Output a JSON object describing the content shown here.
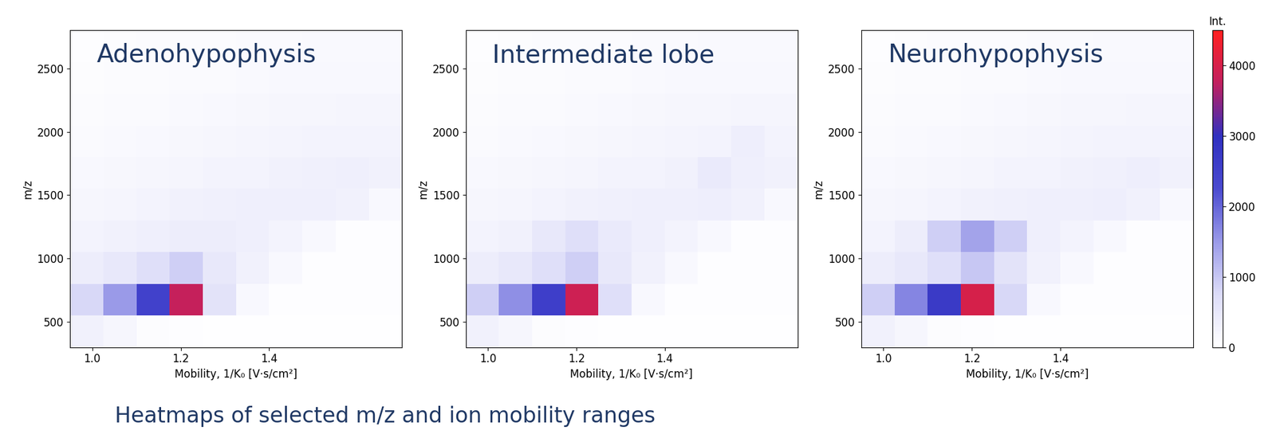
{
  "caption": "Heatmaps of selected m/z and ion mobility ranges",
  "colorbar": {
    "label": "Int.",
    "range": [
      0,
      4500
    ],
    "ticks": [
      0,
      1000,
      2000,
      3000,
      4000
    ]
  },
  "chart_data": [
    {
      "type": "heatmap",
      "title": "Adenohypophysis",
      "x_label": "Mobility, 1/K₀ [V·s/cm²]",
      "y_label": "m/z",
      "xlim": [
        0.95,
        1.7
      ],
      "ylim": [
        300,
        2800
      ],
      "xticks": [
        1.0,
        1.2,
        1.4
      ],
      "yticks": [
        500,
        1000,
        1500,
        2000,
        2500
      ],
      "grid": false,
      "x_bins": [
        0.95,
        1.025,
        1.1,
        1.175,
        1.25,
        1.325,
        1.4,
        1.475,
        1.55,
        1.625,
        1.7
      ],
      "y_bins": [
        300,
        550,
        800,
        1050,
        1300,
        1550,
        1800,
        2050,
        2300,
        2550,
        2800
      ],
      "cells": [
        [
          300,
          200,
          80,
          40,
          30,
          30,
          30,
          30,
          30,
          30
        ],
        [
          800,
          1500,
          2500,
          3800,
          600,
          150,
          60,
          40,
          40,
          40
        ],
        [
          400,
          500,
          700,
          900,
          500,
          300,
          150,
          60,
          40,
          40
        ],
        [
          250,
          300,
          350,
          400,
          400,
          350,
          250,
          150,
          60,
          50
        ],
        [
          200,
          220,
          250,
          300,
          320,
          350,
          350,
          350,
          300,
          150
        ],
        [
          150,
          180,
          200,
          220,
          250,
          270,
          300,
          320,
          350,
          300
        ],
        [
          120,
          140,
          160,
          180,
          200,
          220,
          240,
          260,
          280,
          260
        ],
        [
          100,
          110,
          120,
          140,
          160,
          180,
          200,
          210,
          220,
          220
        ],
        [
          80,
          90,
          100,
          110,
          120,
          140,
          150,
          160,
          170,
          170
        ],
        [
          70,
          80,
          90,
          100,
          100,
          110,
          120,
          130,
          140,
          140
        ]
      ]
    },
    {
      "type": "heatmap",
      "title": "Intermediate lobe",
      "x_label": "Mobility, 1/K₀ [V·s/cm²]",
      "y_label": "m/z",
      "xlim": [
        0.95,
        1.7
      ],
      "ylim": [
        300,
        2800
      ],
      "xticks": [
        1.0,
        1.2,
        1.4
      ],
      "yticks": [
        500,
        1000,
        1500,
        2000,
        2500
      ],
      "grid": false,
      "x_bins": [
        0.95,
        1.025,
        1.1,
        1.175,
        1.25,
        1.325,
        1.4,
        1.475,
        1.55,
        1.625,
        1.7
      ],
      "y_bins": [
        300,
        550,
        800,
        1050,
        1300,
        1550,
        1800,
        2050,
        2300,
        2550,
        2800
      ],
      "cells": [
        [
          300,
          200,
          80,
          40,
          30,
          30,
          30,
          30,
          30,
          30
        ],
        [
          900,
          1600,
          2600,
          3900,
          700,
          150,
          60,
          40,
          40,
          40
        ],
        [
          400,
          500,
          700,
          900,
          500,
          300,
          150,
          60,
          40,
          40
        ],
        [
          250,
          300,
          500,
          700,
          450,
          350,
          250,
          150,
          60,
          50
        ],
        [
          200,
          220,
          250,
          300,
          320,
          350,
          350,
          380,
          300,
          150
        ],
        [
          150,
          180,
          200,
          220,
          250,
          270,
          300,
          450,
          350,
          300
        ],
        [
          120,
          140,
          160,
          180,
          200,
          220,
          240,
          260,
          380,
          260
        ],
        [
          100,
          110,
          120,
          140,
          160,
          180,
          200,
          210,
          220,
          220
        ],
        [
          80,
          90,
          100,
          110,
          120,
          140,
          150,
          160,
          170,
          170
        ],
        [
          70,
          80,
          90,
          100,
          100,
          110,
          120,
          130,
          140,
          140
        ]
      ]
    },
    {
      "type": "heatmap",
      "title": "Neurohypophysis",
      "x_label": "Mobility, 1/K₀ [V·s/cm²]",
      "y_label": "m/z",
      "xlim": [
        0.95,
        1.7
      ],
      "ylim": [
        300,
        2800
      ],
      "xticks": [
        1.0,
        1.2,
        1.4
      ],
      "yticks": [
        500,
        1000,
        1500,
        2000,
        2500
      ],
      "grid": false,
      "x_bins": [
        0.95,
        1.025,
        1.1,
        1.175,
        1.25,
        1.325,
        1.4,
        1.475,
        1.55,
        1.625,
        1.7
      ],
      "y_bins": [
        300,
        550,
        800,
        1050,
        1300,
        1550,
        1800,
        2050,
        2300,
        2550,
        2800
      ],
      "cells": [
        [
          300,
          200,
          80,
          40,
          30,
          30,
          30,
          30,
          30,
          30
        ],
        [
          900,
          1700,
          2700,
          4000,
          800,
          150,
          60,
          40,
          40,
          40
        ],
        [
          400,
          500,
          700,
          1000,
          600,
          300,
          150,
          60,
          40,
          40
        ],
        [
          250,
          400,
          900,
          1400,
          900,
          350,
          250,
          150,
          60,
          50
        ],
        [
          200,
          220,
          250,
          300,
          320,
          350,
          350,
          370,
          300,
          150
        ],
        [
          150,
          180,
          200,
          220,
          250,
          270,
          300,
          320,
          380,
          300
        ],
        [
          120,
          140,
          160,
          180,
          200,
          220,
          240,
          260,
          280,
          260
        ],
        [
          100,
          110,
          120,
          140,
          160,
          180,
          200,
          210,
          220,
          220
        ],
        [
          80,
          90,
          100,
          110,
          120,
          140,
          150,
          160,
          170,
          170
        ],
        [
          70,
          80,
          90,
          100,
          100,
          110,
          120,
          130,
          140,
          140
        ]
      ]
    }
  ]
}
